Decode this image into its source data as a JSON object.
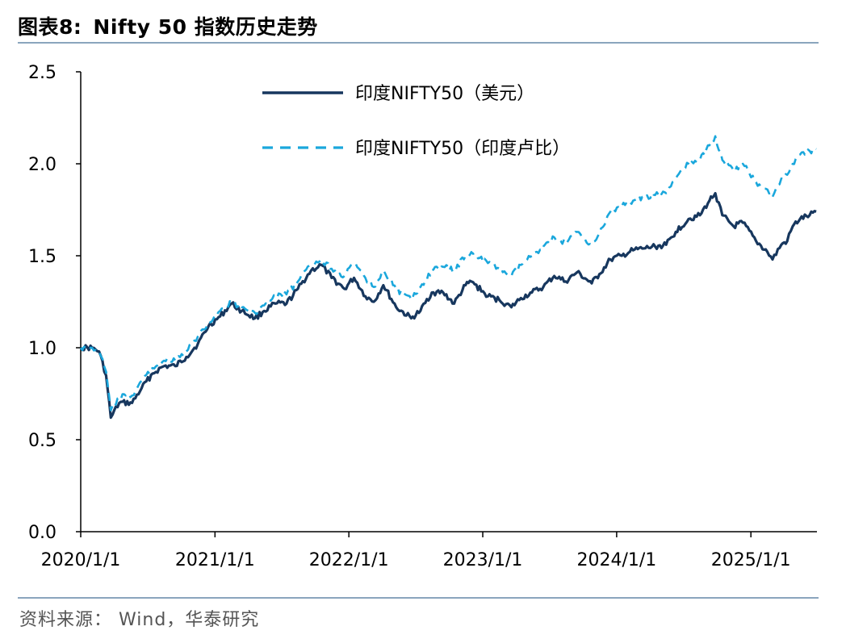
{
  "header": {
    "fig_label": "图表8:",
    "title": "Nifty 50 指数历史走势"
  },
  "footer": {
    "source": "资料来源： Wind，华泰研究"
  },
  "chart_data": {
    "type": "line",
    "title": "Nifty 50 指数历史走势",
    "xlabel": "",
    "ylabel": "",
    "ylim": [
      0,
      2.5
    ],
    "yticks": [
      "0.0",
      "0.5",
      "1.0",
      "1.5",
      "2.0",
      "2.5"
    ],
    "xlim": [
      "2020-01-01",
      "2025-06-30"
    ],
    "xticks": [
      {
        "date": "2020-01-01",
        "label": "2020/1/1"
      },
      {
        "date": "2021-01-01",
        "label": "2021/1/1"
      },
      {
        "date": "2022-01-01",
        "label": "2022/1/1"
      },
      {
        "date": "2023-01-01",
        "label": "2023/1/1"
      },
      {
        "date": "2024-01-01",
        "label": "2024/1/1"
      },
      {
        "date": "2025-01-01",
        "label": "2025/1/1"
      }
    ],
    "grid": false,
    "legend_position": "top-center",
    "series": [
      {
        "name": "印度NIFTY50（美元）",
        "color": "#17375e",
        "style": "solid",
        "points": [
          [
            "2020-01-01",
            1.0
          ],
          [
            "2020-02-01",
            1.0
          ],
          [
            "2020-02-20",
            0.98
          ],
          [
            "2020-03-10",
            0.85
          ],
          [
            "2020-03-23",
            0.62
          ],
          [
            "2020-04-15",
            0.7
          ],
          [
            "2020-05-20",
            0.7
          ],
          [
            "2020-06-15",
            0.78
          ],
          [
            "2020-07-15",
            0.86
          ],
          [
            "2020-08-15",
            0.9
          ],
          [
            "2020-09-15",
            0.9
          ],
          [
            "2020-10-15",
            0.95
          ],
          [
            "2020-11-15",
            1.02
          ],
          [
            "2020-12-15",
            1.12
          ],
          [
            "2021-01-15",
            1.17
          ],
          [
            "2021-02-15",
            1.24
          ],
          [
            "2021-03-15",
            1.2
          ],
          [
            "2021-04-20",
            1.16
          ],
          [
            "2021-05-15",
            1.2
          ],
          [
            "2021-06-15",
            1.24
          ],
          [
            "2021-07-15",
            1.24
          ],
          [
            "2021-08-15",
            1.32
          ],
          [
            "2021-09-20",
            1.42
          ],
          [
            "2021-10-18",
            1.45
          ],
          [
            "2021-11-15",
            1.38
          ],
          [
            "2021-12-20",
            1.32
          ],
          [
            "2022-01-15",
            1.38
          ],
          [
            "2022-02-15",
            1.28
          ],
          [
            "2022-03-10",
            1.25
          ],
          [
            "2022-04-05",
            1.34
          ],
          [
            "2022-05-10",
            1.22
          ],
          [
            "2022-06-20",
            1.16
          ],
          [
            "2022-07-15",
            1.2
          ],
          [
            "2022-08-15",
            1.3
          ],
          [
            "2022-09-15",
            1.3
          ],
          [
            "2022-10-15",
            1.24
          ],
          [
            "2022-11-15",
            1.34
          ],
          [
            "2022-12-01",
            1.36
          ],
          [
            "2023-01-15",
            1.28
          ],
          [
            "2023-02-15",
            1.26
          ],
          [
            "2023-03-20",
            1.22
          ],
          [
            "2023-04-15",
            1.27
          ],
          [
            "2023-05-15",
            1.3
          ],
          [
            "2023-06-15",
            1.33
          ],
          [
            "2023-07-15",
            1.39
          ],
          [
            "2023-08-15",
            1.36
          ],
          [
            "2023-09-15",
            1.41
          ],
          [
            "2023-10-25",
            1.35
          ],
          [
            "2023-11-15",
            1.4
          ],
          [
            "2023-12-15",
            1.48
          ],
          [
            "2024-01-15",
            1.5
          ],
          [
            "2024-02-15",
            1.53
          ],
          [
            "2024-03-15",
            1.54
          ],
          [
            "2024-04-15",
            1.55
          ],
          [
            "2024-05-15",
            1.56
          ],
          [
            "2024-06-10",
            1.63
          ],
          [
            "2024-07-15",
            1.7
          ],
          [
            "2024-08-15",
            1.72
          ],
          [
            "2024-09-10",
            1.8
          ],
          [
            "2024-09-26",
            1.84
          ],
          [
            "2024-10-15",
            1.72
          ],
          [
            "2024-11-15",
            1.66
          ],
          [
            "2024-12-10",
            1.68
          ],
          [
            "2025-01-15",
            1.58
          ],
          [
            "2025-02-15",
            1.52
          ],
          [
            "2025-03-01",
            1.48
          ],
          [
            "2025-03-25",
            1.56
          ],
          [
            "2025-04-10",
            1.58
          ],
          [
            "2025-04-25",
            1.66
          ],
          [
            "2025-05-15",
            1.7
          ],
          [
            "2025-06-10",
            1.72
          ],
          [
            "2025-06-28",
            1.74
          ]
        ]
      },
      {
        "name": "印度NIFTY50（印度卢比）",
        "color": "#1aa7dc",
        "style": "dashed",
        "points": [
          [
            "2020-01-01",
            1.0
          ],
          [
            "2020-02-01",
            1.0
          ],
          [
            "2020-02-20",
            0.98
          ],
          [
            "2020-03-10",
            0.87
          ],
          [
            "2020-03-23",
            0.66
          ],
          [
            "2020-04-15",
            0.73
          ],
          [
            "2020-05-20",
            0.74
          ],
          [
            "2020-06-15",
            0.82
          ],
          [
            "2020-07-15",
            0.89
          ],
          [
            "2020-08-15",
            0.93
          ],
          [
            "2020-09-15",
            0.93
          ],
          [
            "2020-10-15",
            0.98
          ],
          [
            "2020-11-15",
            1.06
          ],
          [
            "2020-12-15",
            1.14
          ],
          [
            "2021-01-15",
            1.2
          ],
          [
            "2021-02-15",
            1.25
          ],
          [
            "2021-03-15",
            1.22
          ],
          [
            "2021-04-20",
            1.19
          ],
          [
            "2021-05-15",
            1.23
          ],
          [
            "2021-06-15",
            1.28
          ],
          [
            "2021-07-15",
            1.29
          ],
          [
            "2021-08-15",
            1.36
          ],
          [
            "2021-09-20",
            1.45
          ],
          [
            "2021-10-18",
            1.48
          ],
          [
            "2021-11-15",
            1.43
          ],
          [
            "2021-12-20",
            1.39
          ],
          [
            "2022-01-15",
            1.46
          ],
          [
            "2022-02-15",
            1.38
          ],
          [
            "2022-03-10",
            1.33
          ],
          [
            "2022-04-05",
            1.42
          ],
          [
            "2022-05-10",
            1.32
          ],
          [
            "2022-06-20",
            1.26
          ],
          [
            "2022-07-15",
            1.33
          ],
          [
            "2022-08-15",
            1.42
          ],
          [
            "2022-09-15",
            1.44
          ],
          [
            "2022-10-15",
            1.42
          ],
          [
            "2022-11-15",
            1.5
          ],
          [
            "2022-12-01",
            1.52
          ],
          [
            "2023-01-15",
            1.46
          ],
          [
            "2023-02-15",
            1.43
          ],
          [
            "2023-03-20",
            1.39
          ],
          [
            "2023-04-15",
            1.45
          ],
          [
            "2023-05-15",
            1.5
          ],
          [
            "2023-06-15",
            1.55
          ],
          [
            "2023-07-15",
            1.6
          ],
          [
            "2023-08-15",
            1.57
          ],
          [
            "2023-09-15",
            1.63
          ],
          [
            "2023-10-25",
            1.56
          ],
          [
            "2023-11-15",
            1.62
          ],
          [
            "2023-12-15",
            1.74
          ],
          [
            "2024-01-15",
            1.77
          ],
          [
            "2024-02-15",
            1.8
          ],
          [
            "2024-03-15",
            1.82
          ],
          [
            "2024-04-15",
            1.83
          ],
          [
            "2024-05-15",
            1.84
          ],
          [
            "2024-06-10",
            1.92
          ],
          [
            "2024-07-15",
            2.0
          ],
          [
            "2024-08-15",
            2.02
          ],
          [
            "2024-09-10",
            2.1
          ],
          [
            "2024-09-26",
            2.15
          ],
          [
            "2024-10-15",
            2.02
          ],
          [
            "2024-11-15",
            1.96
          ],
          [
            "2024-12-10",
            2.0
          ],
          [
            "2025-01-15",
            1.9
          ],
          [
            "2025-02-15",
            1.86
          ],
          [
            "2025-03-01",
            1.82
          ],
          [
            "2025-03-25",
            1.92
          ],
          [
            "2025-04-10",
            1.94
          ],
          [
            "2025-04-25",
            2.0
          ],
          [
            "2025-05-15",
            2.05
          ],
          [
            "2025-06-10",
            2.07
          ],
          [
            "2025-06-28",
            2.08
          ]
        ]
      }
    ]
  }
}
